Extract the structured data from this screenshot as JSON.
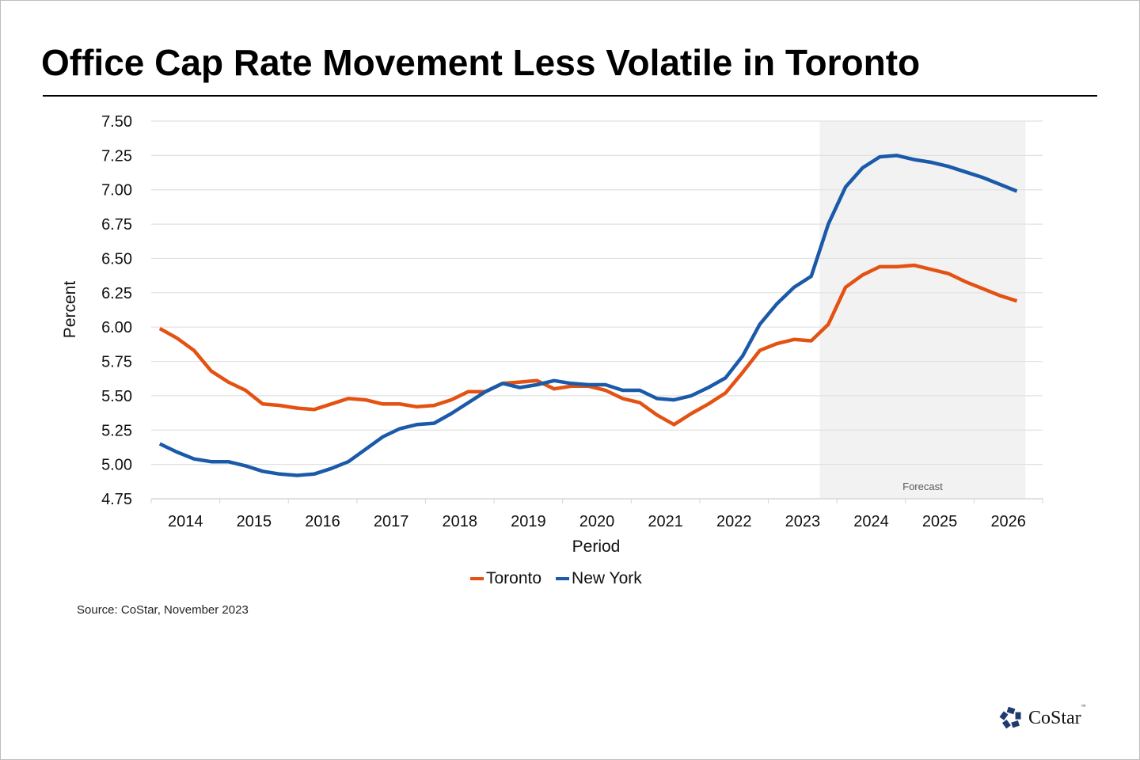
{
  "title": "Office Cap Rate Movement Less Volatile in Toronto",
  "source": "Source: CoStar, November 2023",
  "logo": {
    "name": "CoStar",
    "tm": "™",
    "color": "#1f3a6e"
  },
  "colors": {
    "toronto": "#e35212",
    "new_york": "#1a5aa8",
    "forecast_shade": "#f2f2f2",
    "grid": "#e1e1e1"
  },
  "chart_data": {
    "type": "line",
    "title": "Office Cap Rate Movement Less Volatile in Toronto",
    "xlabel": "Period",
    "ylabel": "Percent",
    "ylim": [
      4.75,
      7.5
    ],
    "yticks": [
      "4.75",
      "5.00",
      "5.25",
      "5.50",
      "5.75",
      "6.00",
      "6.25",
      "6.50",
      "6.75",
      "7.00",
      "7.25",
      "7.50"
    ],
    "xtick_labels": [
      "2014",
      "2015",
      "2016",
      "2017",
      "2018",
      "2019",
      "2020",
      "2021",
      "2022",
      "2023",
      "2024",
      "2025",
      "2026"
    ],
    "x_granularity": "quarterly",
    "x_start": "2014 Q1",
    "x_end": "2026 Q3",
    "grid": true,
    "legend_position": "bottom-center",
    "annotations": [
      {
        "text": "Forecast",
        "type": "shaded-region",
        "from": "2023 Q4",
        "to": "2026 Q3"
      }
    ],
    "series": [
      {
        "name": "Toronto",
        "values": [
          5.99,
          5.92,
          5.83,
          5.68,
          5.6,
          5.54,
          5.44,
          5.43,
          5.41,
          5.4,
          5.44,
          5.48,
          5.47,
          5.44,
          5.44,
          5.42,
          5.43,
          5.47,
          5.53,
          5.53,
          5.59,
          5.6,
          5.61,
          5.55,
          5.57,
          5.57,
          5.54,
          5.48,
          5.45,
          5.36,
          5.29,
          5.37,
          5.44,
          5.52,
          5.67,
          5.83,
          5.88,
          5.91,
          5.9,
          6.02,
          6.29,
          6.38,
          6.44,
          6.44,
          6.45,
          6.42,
          6.39,
          6.33,
          6.28,
          6.23,
          6.19
        ]
      },
      {
        "name": "New York",
        "values": [
          5.15,
          5.09,
          5.04,
          5.02,
          5.02,
          4.99,
          4.95,
          4.93,
          4.92,
          4.93,
          4.97,
          5.02,
          5.11,
          5.2,
          5.26,
          5.29,
          5.3,
          5.37,
          5.45,
          5.53,
          5.59,
          5.56,
          5.58,
          5.61,
          5.59,
          5.58,
          5.58,
          5.54,
          5.54,
          5.48,
          5.47,
          5.5,
          5.56,
          5.63,
          5.79,
          6.02,
          6.17,
          6.29,
          6.37,
          6.75,
          7.02,
          7.16,
          7.24,
          7.25,
          7.22,
          7.2,
          7.17,
          7.13,
          7.09,
          7.04,
          6.99
        ]
      }
    ]
  }
}
